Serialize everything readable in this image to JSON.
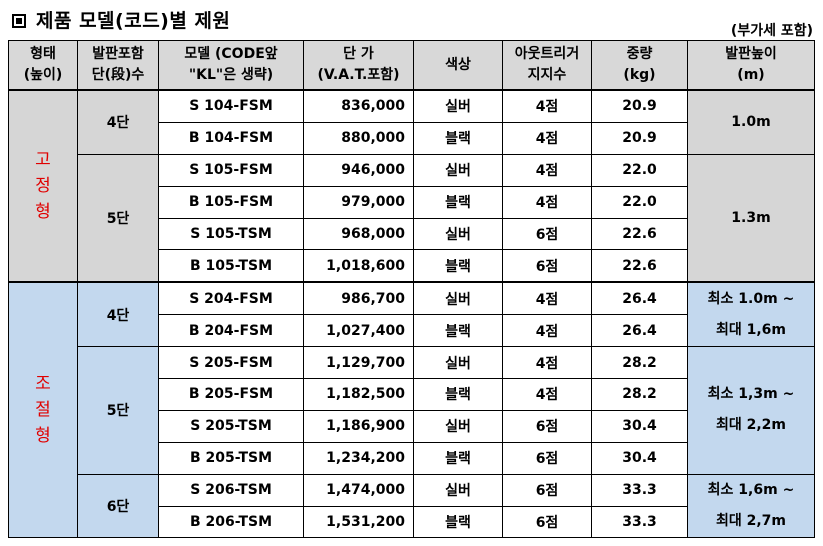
{
  "title": "제품 모델(코드)별 제원",
  "vat_note": "(부가세 포함)",
  "headers": [
    [
      "형태",
      "(높이)"
    ],
    [
      "발판포함",
      "단(段)수"
    ],
    [
      "모델 (CODE앞",
      "\"KL\"은 생략)"
    ],
    [
      "단 가",
      "(V.A.T.포함)"
    ],
    [
      "색상"
    ],
    [
      "아웃트리거",
      "지지수"
    ],
    [
      "중량",
      "(kg)"
    ],
    [
      "발판높이",
      "(m)"
    ]
  ],
  "groups": [
    {
      "category": "고정형",
      "category_chars": [
        "고",
        "정",
        "형"
      ],
      "tiers": [
        {
          "steps": "4단",
          "height": [
            "1.0m"
          ],
          "rows": [
            {
              "model": "S 104-FSM",
              "price": "836,000",
              "color": "실버",
              "outrigger": "4점",
              "weight": "20.9"
            },
            {
              "model": "B 104-FSM",
              "price": "880,000",
              "color": "블랙",
              "outrigger": "4점",
              "weight": "20.9"
            }
          ]
        },
        {
          "steps": "5단",
          "height": [
            "1.3m"
          ],
          "rows": [
            {
              "model": "S 105-FSM",
              "price": "946,000",
              "color": "실버",
              "outrigger": "4점",
              "weight": "22.0"
            },
            {
              "model": "B 105-FSM",
              "price": "979,000",
              "color": "블랙",
              "outrigger": "4점",
              "weight": "22.0"
            },
            {
              "model": "S 105-TSM",
              "price": "968,000",
              "color": "실버",
              "outrigger": "6점",
              "weight": "22.6"
            },
            {
              "model": "B 105-TSM",
              "price": "1,018,600",
              "color": "블랙",
              "outrigger": "6점",
              "weight": "22.6"
            }
          ]
        }
      ]
    },
    {
      "category": "조절형",
      "category_chars": [
        "조",
        "절",
        "형"
      ],
      "tiers": [
        {
          "steps": "4단",
          "height": [
            "최소 1.0m ~",
            "최대 1,6m"
          ],
          "rows": [
            {
              "model": "S 204-FSM",
              "price": "986,700",
              "color": "실버",
              "outrigger": "4점",
              "weight": "26.4"
            },
            {
              "model": "B 204-FSM",
              "price": "1,027,400",
              "color": "블랙",
              "outrigger": "4점",
              "weight": "26.4"
            }
          ]
        },
        {
          "steps": "5단",
          "height": [
            "최소 1,3m ~",
            "최대 2,2m"
          ],
          "rows": [
            {
              "model": "S 205-FSM",
              "price": "1,129,700",
              "color": "실버",
              "outrigger": "4점",
              "weight": "28.2"
            },
            {
              "model": "B 205-FSM",
              "price": "1,182,500",
              "color": "블랙",
              "outrigger": "4점",
              "weight": "28.2"
            },
            {
              "model": "S 205-TSM",
              "price": "1,186,900",
              "color": "실버",
              "outrigger": "6점",
              "weight": "30.4"
            },
            {
              "model": "B 205-TSM",
              "price": "1,234,200",
              "color": "블랙",
              "outrigger": "6점",
              "weight": "30.4"
            }
          ]
        },
        {
          "steps": "6단",
          "height": [
            "최소 1,6m ~",
            "최대 2,7m"
          ],
          "rows": [
            {
              "model": "S 206-TSM",
              "price": "1,474,000",
              "color": "실버",
              "outrigger": "6점",
              "weight": "33.3"
            },
            {
              "model": "B 206-TSM",
              "price": "1,531,200",
              "color": "블랙",
              "outrigger": "6점",
              "weight": "33.3"
            }
          ]
        }
      ]
    }
  ]
}
